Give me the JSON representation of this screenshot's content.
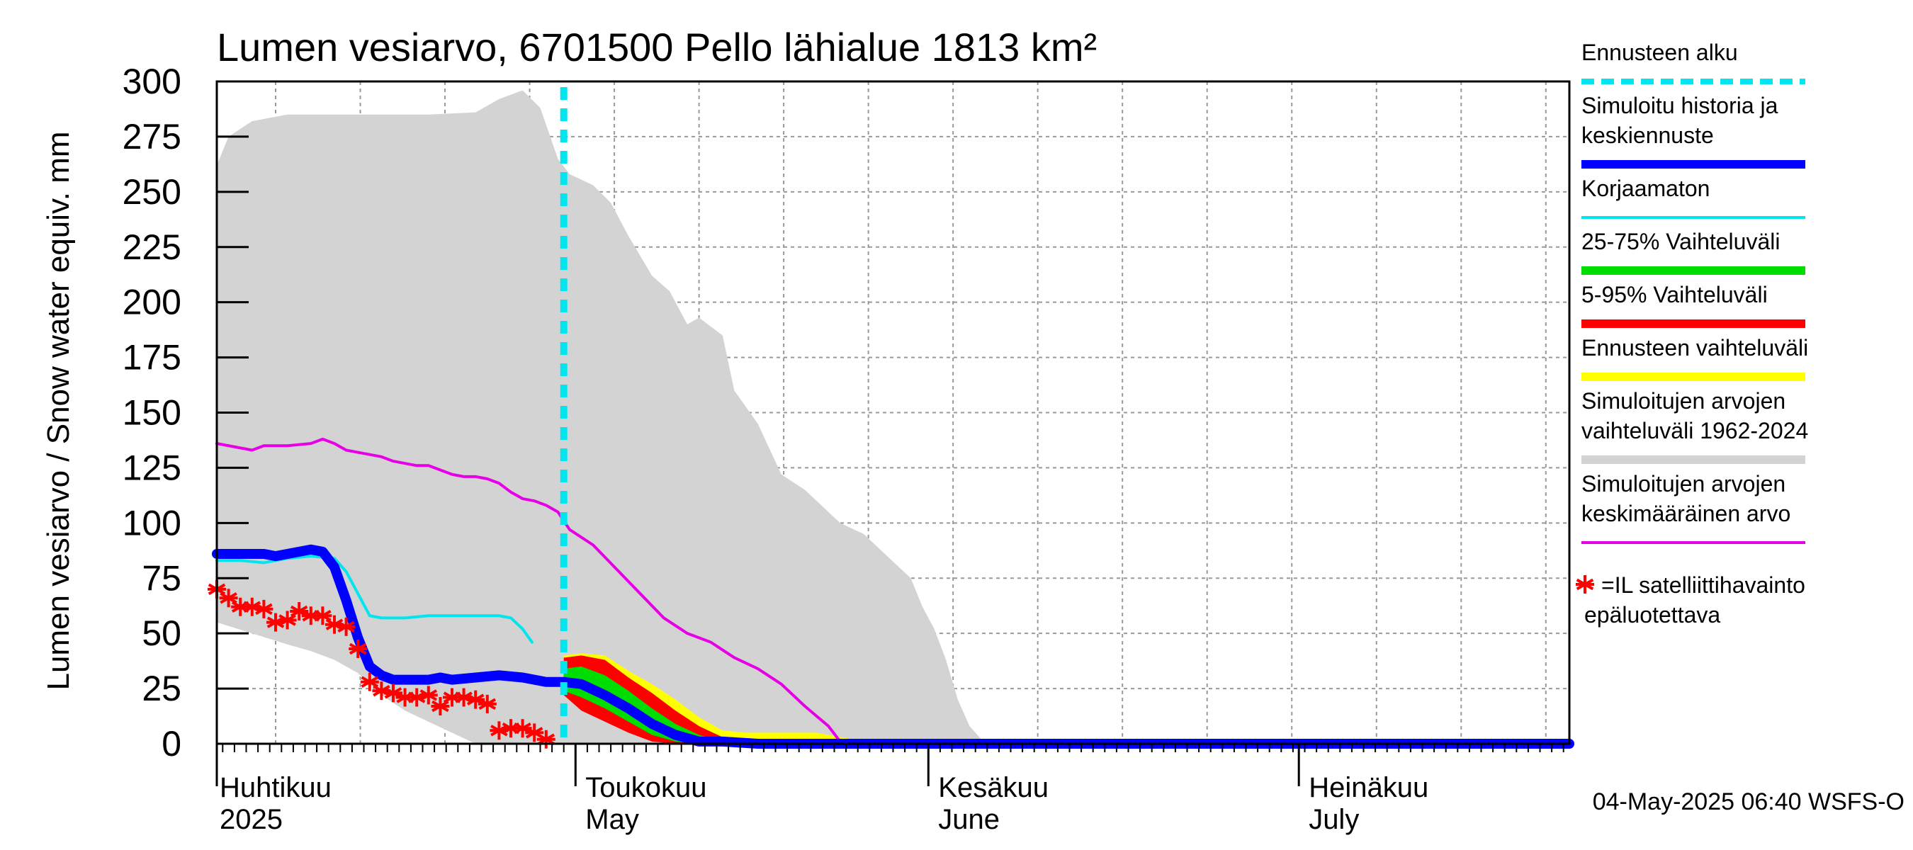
{
  "chart_data": {
    "type": "area",
    "title": "Lumen vesiarvo, 6701500 Pello lähialue 1813 km²",
    "ylabel": "Lumen vesiarvo / Snow water equiv.    mm",
    "ylim": [
      0,
      300
    ],
    "yticks": [
      0,
      25,
      50,
      75,
      100,
      125,
      150,
      175,
      200,
      225,
      250,
      275,
      300
    ],
    "xlim": [
      0,
      115
    ],
    "x_unit": "days since 2025-03-27",
    "grid": true,
    "month_labels": [
      {
        "fi": "Huhtikuu",
        "en": "2025",
        "day": 5
      },
      {
        "fi": "Toukokuu",
        "en": "May",
        "day": 35
      },
      {
        "fi": "Kesäkuu",
        "en": "June",
        "day": 66
      },
      {
        "fi": "Heinäkuu",
        "en": "July",
        "day": 96
      }
    ],
    "forecast_start_day": 29.5,
    "series": [
      {
        "name": "Simuloitujen arvojen vaihteluväli 1962-2024",
        "kind": "band",
        "upper": [
          [
            0,
            262
          ],
          [
            1,
            275
          ],
          [
            3,
            282
          ],
          [
            6,
            285
          ],
          [
            10,
            285
          ],
          [
            14,
            285
          ],
          [
            18,
            285
          ],
          [
            22,
            286
          ],
          [
            24,
            292
          ],
          [
            26,
            296
          ],
          [
            27.5,
            288
          ],
          [
            29,
            265
          ],
          [
            30,
            258
          ],
          [
            32,
            253
          ],
          [
            33.5,
            245
          ],
          [
            35,
            230
          ],
          [
            37,
            212
          ],
          [
            38.5,
            205
          ],
          [
            40,
            190
          ],
          [
            41,
            193
          ],
          [
            43,
            185
          ],
          [
            44,
            160
          ],
          [
            46,
            145
          ],
          [
            48,
            122
          ],
          [
            50,
            115
          ],
          [
            53,
            100
          ],
          [
            55,
            95
          ],
          [
            57,
            85
          ],
          [
            59,
            75
          ],
          [
            60,
            62
          ],
          [
            61,
            52
          ],
          [
            62,
            38
          ],
          [
            63,
            20
          ],
          [
            64,
            8
          ],
          [
            65,
            2
          ],
          [
            66,
            0
          ],
          [
            115,
            0
          ]
        ],
        "lower": [
          [
            0,
            55
          ],
          [
            3,
            50
          ],
          [
            6,
            45
          ],
          [
            8,
            42
          ],
          [
            10,
            38
          ],
          [
            12,
            32
          ],
          [
            14,
            22
          ],
          [
            16,
            15
          ],
          [
            18,
            10
          ],
          [
            20,
            5
          ],
          [
            22,
            0
          ],
          [
            115,
            0
          ]
        ]
      },
      {
        "name": "Ennusteen vaihteluväli",
        "kind": "band",
        "upper": [
          [
            29.5,
            40
          ],
          [
            31,
            41
          ],
          [
            33,
            40
          ],
          [
            35,
            33
          ],
          [
            37,
            27
          ],
          [
            39,
            20
          ],
          [
            41,
            12
          ],
          [
            43,
            6
          ],
          [
            45,
            5
          ],
          [
            47,
            5
          ],
          [
            49,
            5
          ],
          [
            51,
            5
          ],
          [
            53,
            3
          ],
          [
            55,
            1
          ],
          [
            57,
            1
          ],
          [
            59,
            0
          ]
        ],
        "lower": [
          [
            29.5,
            26
          ],
          [
            31,
            20
          ],
          [
            33,
            14
          ],
          [
            35,
            8
          ],
          [
            37,
            3
          ],
          [
            39,
            1
          ],
          [
            41,
            0
          ],
          [
            43,
            0
          ],
          [
            45,
            0
          ],
          [
            47,
            0
          ],
          [
            49,
            0
          ],
          [
            51,
            0
          ],
          [
            53,
            0
          ],
          [
            55,
            0
          ],
          [
            57,
            0
          ],
          [
            59,
            0
          ]
        ]
      },
      {
        "name": "5-95% Vaihteluväli",
        "kind": "band",
        "upper": [
          [
            29.5,
            39
          ],
          [
            31,
            40
          ],
          [
            33,
            38
          ],
          [
            35,
            30
          ],
          [
            37,
            23
          ],
          [
            39,
            15
          ],
          [
            41,
            8
          ],
          [
            43,
            3
          ],
          [
            45,
            1
          ],
          [
            47,
            0
          ]
        ],
        "lower": [
          [
            29.5,
            22
          ],
          [
            31,
            15
          ],
          [
            33,
            10
          ],
          [
            35,
            5
          ],
          [
            37,
            1
          ],
          [
            39,
            0
          ],
          [
            41,
            0
          ],
          [
            43,
            0
          ],
          [
            45,
            0
          ],
          [
            47,
            0
          ]
        ]
      },
      {
        "name": "25-75% Vaihteluväli",
        "kind": "band",
        "upper": [
          [
            29.5,
            34
          ],
          [
            31,
            35
          ],
          [
            33,
            31
          ],
          [
            35,
            24
          ],
          [
            37,
            16
          ],
          [
            39,
            9
          ],
          [
            41,
            4
          ],
          [
            43,
            1
          ],
          [
            45,
            0
          ]
        ],
        "lower": [
          [
            29.5,
            24
          ],
          [
            31,
            21
          ],
          [
            33,
            16
          ],
          [
            35,
            10
          ],
          [
            37,
            4
          ],
          [
            39,
            1
          ],
          [
            41,
            0
          ],
          [
            43,
            0
          ],
          [
            45,
            0
          ]
        ]
      },
      {
        "name": "Simuloitujen arvojen keskimääräinen arvo",
        "kind": "line",
        "color": "#e600e6",
        "points": [
          [
            0,
            136
          ],
          [
            1,
            135
          ],
          [
            2,
            134
          ],
          [
            3,
            133
          ],
          [
            4,
            135
          ],
          [
            6,
            135
          ],
          [
            8,
            136
          ],
          [
            9,
            138
          ],
          [
            10,
            136
          ],
          [
            11,
            133
          ],
          [
            12,
            132
          ],
          [
            14,
            130
          ],
          [
            15,
            128
          ],
          [
            16,
            127
          ],
          [
            17,
            126
          ],
          [
            18,
            126
          ],
          [
            19,
            124
          ],
          [
            20,
            122
          ],
          [
            21,
            121
          ],
          [
            22,
            121
          ],
          [
            23,
            120
          ],
          [
            24,
            118
          ],
          [
            25,
            114
          ],
          [
            26,
            111
          ],
          [
            27,
            110
          ],
          [
            28,
            108
          ],
          [
            29,
            105
          ],
          [
            30,
            97
          ],
          [
            32,
            90
          ],
          [
            34,
            79
          ],
          [
            36,
            68
          ],
          [
            38,
            57
          ],
          [
            40,
            50
          ],
          [
            42,
            46
          ],
          [
            44,
            39
          ],
          [
            46,
            34
          ],
          [
            48,
            27
          ],
          [
            50,
            17
          ],
          [
            52,
            8
          ],
          [
            53,
            1
          ],
          [
            115,
            1
          ]
        ]
      },
      {
        "name": "Korjaamaton",
        "kind": "line",
        "color": "#00e5ee",
        "points": [
          [
            0,
            83
          ],
          [
            2,
            83
          ],
          [
            4,
            82
          ],
          [
            6,
            84
          ],
          [
            8,
            85
          ],
          [
            10,
            84
          ],
          [
            11,
            78
          ],
          [
            12,
            68
          ],
          [
            13,
            58
          ],
          [
            14,
            57
          ],
          [
            16,
            57
          ],
          [
            18,
            58
          ],
          [
            20,
            58
          ],
          [
            24,
            58
          ],
          [
            25,
            57
          ],
          [
            26,
            52
          ],
          [
            26.8,
            46
          ]
        ]
      },
      {
        "name": "Simuloitu historia ja keskiennuste",
        "kind": "line",
        "color": "#0000ff",
        "points": [
          [
            0,
            86
          ],
          [
            2,
            86
          ],
          [
            4,
            86
          ],
          [
            5,
            85
          ],
          [
            7,
            87
          ],
          [
            8,
            88
          ],
          [
            9,
            87
          ],
          [
            10,
            80
          ],
          [
            11,
            65
          ],
          [
            12,
            48
          ],
          [
            13,
            35
          ],
          [
            14,
            31
          ],
          [
            15,
            29
          ],
          [
            16,
            29
          ],
          [
            17,
            29
          ],
          [
            18,
            29
          ],
          [
            19,
            30
          ],
          [
            20,
            29
          ],
          [
            22,
            30
          ],
          [
            24,
            31
          ],
          [
            26,
            30
          ],
          [
            27,
            29
          ],
          [
            28,
            28
          ],
          [
            29.5,
            28
          ],
          [
            31,
            27
          ],
          [
            33,
            22
          ],
          [
            35,
            16
          ],
          [
            37,
            9
          ],
          [
            39,
            4
          ],
          [
            41,
            1
          ],
          [
            43,
            1
          ],
          [
            46,
            0
          ],
          [
            115,
            0
          ]
        ]
      }
    ],
    "observations": {
      "name": "=IL satelliittihavainto epäluotettava",
      "marker": "asterisk",
      "color": "#ff0000",
      "points": [
        [
          0,
          70
        ],
        [
          1,
          66
        ],
        [
          2,
          62
        ],
        [
          3,
          62
        ],
        [
          4,
          61
        ],
        [
          5,
          55
        ],
        [
          6,
          56
        ],
        [
          7,
          60
        ],
        [
          8,
          58
        ],
        [
          9,
          58
        ],
        [
          10,
          54
        ],
        [
          11,
          53
        ],
        [
          12,
          43
        ],
        [
          13,
          28
        ],
        [
          14,
          24
        ],
        [
          15,
          23
        ],
        [
          16,
          21
        ],
        [
          17,
          21
        ],
        [
          18,
          22
        ],
        [
          19,
          17
        ],
        [
          20,
          21
        ],
        [
          21,
          21
        ],
        [
          22,
          20
        ],
        [
          23,
          18
        ],
        [
          24,
          6
        ],
        [
          25,
          7
        ],
        [
          26,
          7
        ],
        [
          27,
          5
        ],
        [
          28,
          2
        ]
      ]
    }
  },
  "legend": {
    "items": [
      {
        "label": "Ennusteen alku",
        "color": "#00e5ee",
        "style": "dashed"
      },
      {
        "label": "Simuloitu historia ja keskiennuste",
        "lines": [
          "Simuloitu historia ja",
          "keskiennuste"
        ],
        "color": "#0000ff",
        "style": "thick"
      },
      {
        "label": "Korjaamaton",
        "color": "#00e5ee",
        "style": "thin"
      },
      {
        "label": "25-75% Vaihteluväli",
        "color": "#00dd00",
        "style": "thick"
      },
      {
        "label": "5-95% Vaihteluväli",
        "color": "#ff0000",
        "style": "thick"
      },
      {
        "label": "Ennusteen vaihteluväli",
        "color": "#ffff00",
        "style": "thick"
      },
      {
        "label": "Simuloitujen arvojen vaihteluväli 1962-2024",
        "lines": [
          "Simuloitujen arvojen",
          "vaihteluväli 1962-2024"
        ],
        "color": "#d3d3d3",
        "style": "thick"
      },
      {
        "label": "Simuloitujen arvojen keskimääräinen arvo",
        "lines": [
          "Simuloitujen arvojen",
          "keskimääräinen arvo"
        ],
        "color": "#e600e6",
        "style": "thin"
      }
    ],
    "observation_label": [
      "=IL satelliittihavainto",
      "epäluotettava"
    ]
  },
  "timestamp": "04-May-2025 06:40 WSFS-O",
  "colors": {
    "grid": "#999999",
    "band_hist": "#d3d3d3",
    "forecast_line": "#00e5ee",
    "purple_base": "#9400d3"
  }
}
